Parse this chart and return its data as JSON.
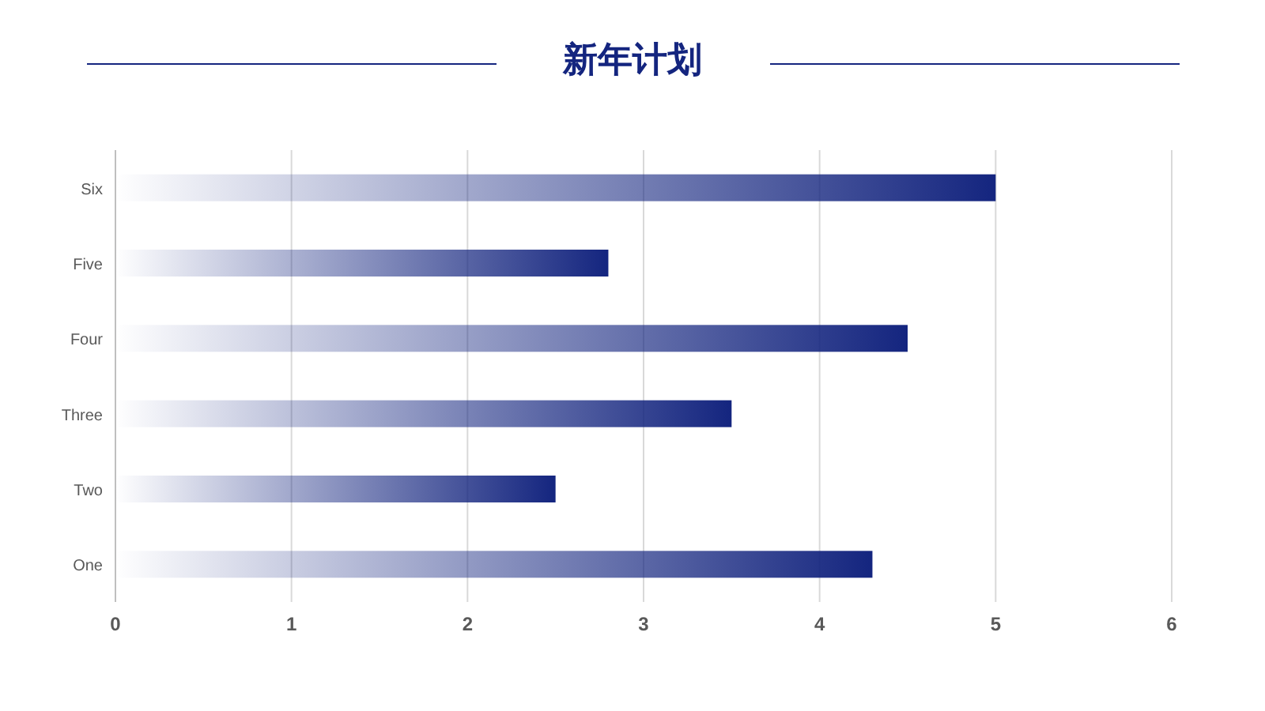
{
  "chart_data": {
    "type": "bar",
    "title": "新年计划",
    "orientation": "horizontal",
    "categories": [
      "Six",
      "Five",
      "Four",
      "Three",
      "Two",
      "One"
    ],
    "values": [
      5,
      2.8,
      4.5,
      3.5,
      2.5,
      4.3
    ],
    "color": "#14257f",
    "xlim": [
      0,
      6
    ],
    "xticks": [
      0,
      1,
      2,
      3,
      4,
      5,
      6
    ],
    "grid": "x"
  }
}
